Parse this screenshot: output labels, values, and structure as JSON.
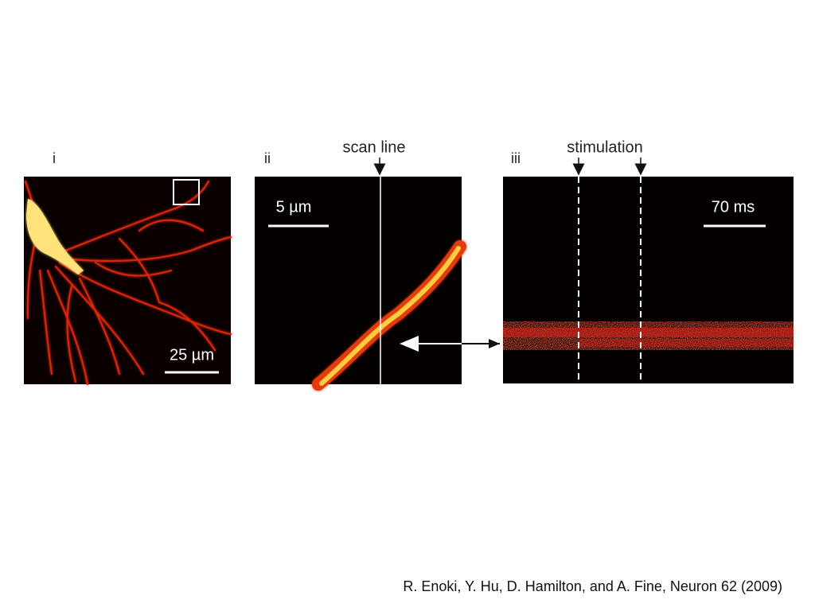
{
  "panels": [
    {
      "label": "i",
      "scale_bar": "25 µm"
    },
    {
      "label": "ii",
      "annotation": "scan line",
      "scale_bar": "5 µm"
    },
    {
      "label": "iii",
      "annotation": "stimulation",
      "scale_bar": "70 ms"
    }
  ],
  "citation": "R. Enoki, Y. Hu, D. Hamilton, and A. Fine, Neuron 62 (2009)"
}
